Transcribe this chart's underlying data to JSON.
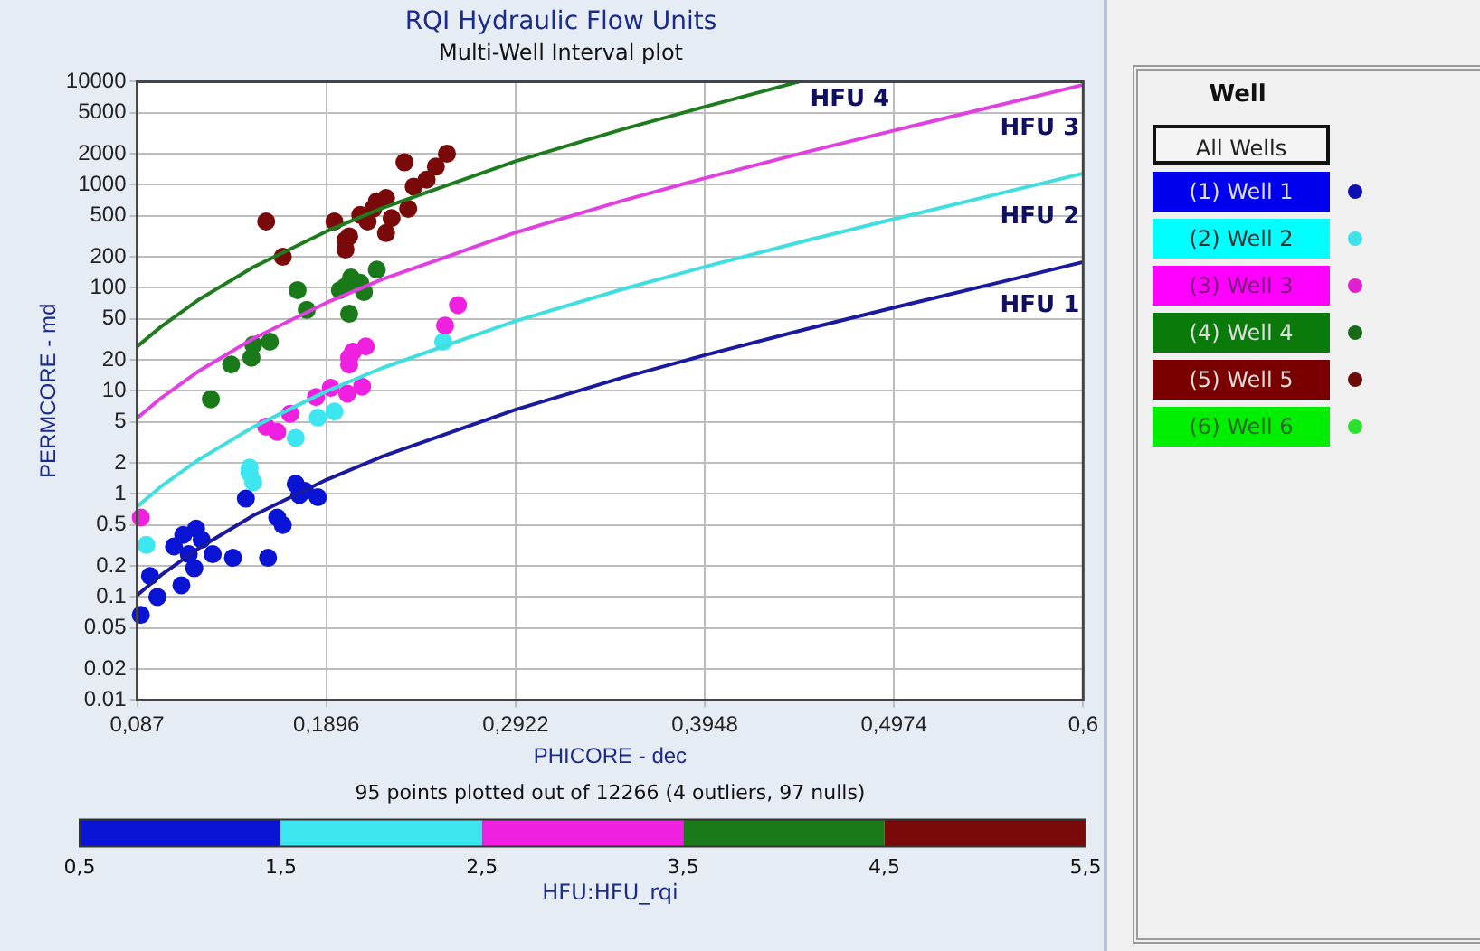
{
  "chart_data": {
    "type": "scatter",
    "title": "RQI Hydraulic Flow Units",
    "subtitle": "Multi-Well Interval plot",
    "xlabel": "PHICORE - dec",
    "ylabel": "PERMCORE - md",
    "clabel": "HFU:HFU_rqi",
    "log": "y",
    "grid": true,
    "xlim": [
      0.087,
      0.6
    ],
    "xticks": [
      {
        "value": 0.087,
        "label": "0,087"
      },
      {
        "value": 0.1896,
        "label": "0,1896"
      },
      {
        "value": 0.2922,
        "label": "0,2922"
      },
      {
        "value": 0.3948,
        "label": "0,3948"
      },
      {
        "value": 0.4974,
        "label": "0,4974"
      },
      {
        "value": 0.6,
        "label": "0,6"
      }
    ],
    "ylim": [
      0.01,
      10000
    ],
    "yticks": [
      0.01,
      0.02,
      0.05,
      0.1,
      0.2,
      0.5,
      1,
      2,
      5,
      10,
      20,
      50,
      100,
      200,
      500,
      1000,
      2000,
      5000,
      10000
    ],
    "clim": [
      0.5,
      5.5
    ],
    "cticks": [
      {
        "value": 0.5,
        "label": "0,5"
      },
      {
        "value": 1.5,
        "label": "1,5"
      },
      {
        "value": 2.5,
        "label": "2,5"
      },
      {
        "value": 3.5,
        "label": "3,5"
      },
      {
        "value": 4.5,
        "label": "4,5"
      },
      {
        "value": 5.5,
        "label": "5,5"
      }
    ],
    "series": [
      {
        "type": "line",
        "name": "HFU 1",
        "color": "#1a1a9e",
        "x": [
          0.087,
          0.1,
          0.12,
          0.15,
          0.1896,
          0.22,
          0.2922,
          0.35,
          0.3948,
          0.45,
          0.4974,
          0.55,
          0.6
        ],
        "values": [
          0.104,
          0.163,
          0.294,
          0.617,
          1.37,
          2.31,
          6.57,
          13.4,
          22.2,
          39.8,
          64.3,
          108,
          178
        ]
      },
      {
        "type": "line",
        "name": "HFU 2",
        "color": "#40dede",
        "x": [
          0.087,
          0.1,
          0.12,
          0.15,
          0.1896,
          0.22,
          0.2922,
          0.35,
          0.3948,
          0.45,
          0.4974,
          0.55,
          0.6
        ],
        "values": [
          0.754,
          1.18,
          2.13,
          4.46,
          9.91,
          16.7,
          47.6,
          96.9,
          160,
          288,
          465,
          785,
          1289
        ]
      },
      {
        "type": "line",
        "name": "HFU 3",
        "color": "#e040e0",
        "x": [
          0.087,
          0.1,
          0.12,
          0.15,
          0.1896,
          0.22,
          0.2922,
          0.35,
          0.3948,
          0.45,
          0.4974,
          0.55,
          0.6
        ],
        "values": [
          5.45,
          8.52,
          15.4,
          32.2,
          71.6,
          121,
          344,
          700,
          1159,
          2079,
          3361,
          5669,
          9315
        ]
      },
      {
        "type": "line",
        "name": "HFU 4",
        "color": "#1e7b1e",
        "x": [
          0.087,
          0.1,
          0.12,
          0.15,
          0.1896,
          0.22,
          0.2922,
          0.35,
          0.3948,
          0.446
        ],
        "values": [
          26.9,
          42.0,
          75.9,
          159,
          353,
          595,
          1693,
          3450,
          5712,
          10000
        ]
      },
      {
        "type": "scatter",
        "x": [
          0.089,
          0.094,
          0.098,
          0.111,
          0.107,
          0.112,
          0.119,
          0.115,
          0.118,
          0.122,
          0.128,
          0.139,
          0.158,
          0.146,
          0.163,
          0.166,
          0.173,
          0.175,
          0.185,
          0.178,
          0.092,
          0.148,
          0.15,
          0.148,
          0.173,
          0.185,
          0.194,
          0.253,
          0.089,
          0.157,
          0.163,
          0.17,
          0.184,
          0.192,
          0.201,
          0.209,
          0.202,
          0.204,
          0.211,
          0.202,
          0.254,
          0.261,
          0.127,
          0.138,
          0.149,
          0.15,
          0.159,
          0.174,
          0.179,
          0.202,
          0.197,
          0.203,
          0.208,
          0.21,
          0.217,
          0.2,
          0.157,
          0.166,
          0.194,
          0.2,
          0.2,
          0.202,
          0.208,
          0.215,
          0.217,
          0.222,
          0.222,
          0.225,
          0.232,
          0.234,
          0.237,
          0.244,
          0.249,
          0.255,
          0.212
        ],
        "values": [
          0.067,
          0.16,
          0.1,
          0.13,
          0.31,
          0.4,
          0.46,
          0.26,
          0.19,
          0.36,
          0.26,
          0.24,
          0.24,
          0.9,
          0.59,
          0.5,
          1.25,
          0.98,
          0.93,
          1.07,
          0.32,
          1.6,
          1.3,
          1.8,
          3.5,
          5.5,
          6.3,
          30,
          0.59,
          4.5,
          4,
          6,
          8.7,
          10.7,
          9.4,
          11,
          21,
          24,
          27,
          18,
          43,
          68,
          8.3,
          18,
          21,
          28,
          30,
          95,
          61,
          56,
          95,
          126,
          112,
          91,
          150,
          103,
          440,
          200,
          440,
          290,
          235,
          316,
          510,
          585,
          690,
          745,
          340,
          475,
          1650,
          585,
          960,
          1120,
          1500,
          2000,
          440
        ],
        "colors": [
          "#0a14d4",
          "#0a14d4",
          "#0a14d4",
          "#0a14d4",
          "#0a14d4",
          "#0a14d4",
          "#0a14d4",
          "#0a14d4",
          "#0a14d4",
          "#0a14d4",
          "#0a14d4",
          "#0a14d4",
          "#0a14d4",
          "#0a14d4",
          "#0a14d4",
          "#0a14d4",
          "#0a14d4",
          "#0a14d4",
          "#0a14d4",
          "#0a14d4",
          "#3ee6f0",
          "#3ee6f0",
          "#3ee6f0",
          "#3ee6f0",
          "#3ee6f0",
          "#3ee6f0",
          "#3ee6f0",
          "#3ee6f0",
          "#f020e0",
          "#f020e0",
          "#f020e0",
          "#f020e0",
          "#f020e0",
          "#f020e0",
          "#f020e0",
          "#f020e0",
          "#f020e0",
          "#f020e0",
          "#f020e0",
          "#f020e0",
          "#f020e0",
          "#f020e0",
          "#1a7a1a",
          "#1a7a1a",
          "#1a7a1a",
          "#1a7a1a",
          "#1a7a1a",
          "#1a7a1a",
          "#1a7a1a",
          "#1a7a1a",
          "#1a7a1a",
          "#1a7a1a",
          "#1a7a1a",
          "#1a7a1a",
          "#1a7a1a",
          "#1a7a1a",
          "#7a0a0a",
          "#7a0a0a",
          "#7a0a0a",
          "#7a0a0a",
          "#7a0a0a",
          "#7a0a0a",
          "#7a0a0a",
          "#7a0a0a",
          "#7a0a0a",
          "#7a0a0a",
          "#7a0a0a",
          "#7a0a0a",
          "#7a0a0a",
          "#7a0a0a",
          "#7a0a0a",
          "#7a0a0a",
          "#7a0a0a",
          "#7a0a0a",
          "#7a0a0a"
        ]
      }
    ],
    "annotations": [
      "95 points plotted out of 12266 (4 outliers, 97 nulls)",
      "Well",
      "All Wells",
      "(1) Well 1",
      "(2) Well 2",
      "(3) Well 3",
      "(4) Well 4",
      "(5) Well 5",
      "(6) Well 6"
    ]
  }
}
